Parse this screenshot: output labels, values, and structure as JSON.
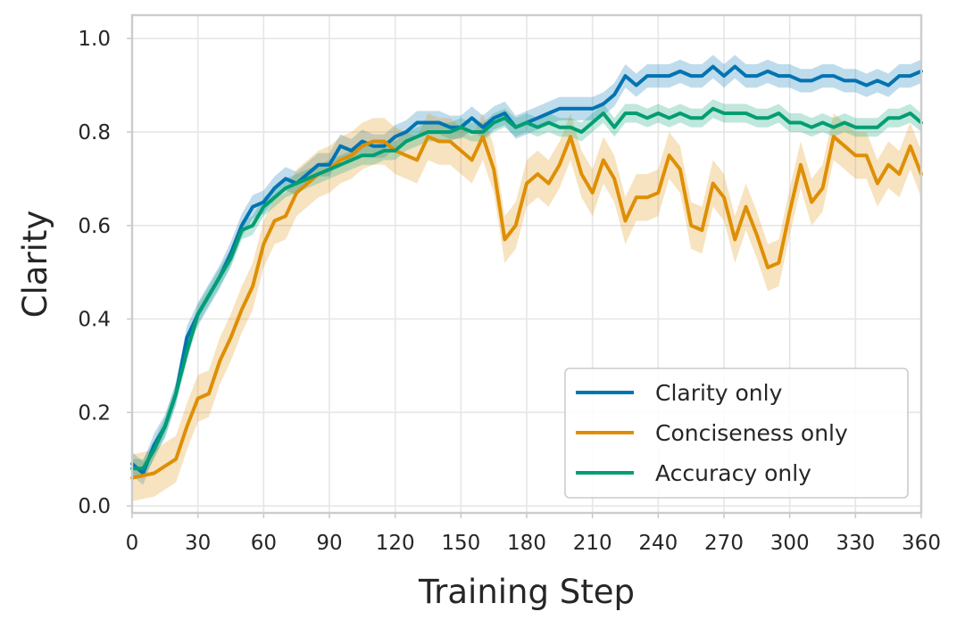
{
  "chart_data": {
    "type": "line",
    "title": "",
    "xlabel": "Training Step",
    "ylabel": "Clarity",
    "xlim": [
      0,
      360
    ],
    "ylim": [
      -0.015,
      1.05
    ],
    "xticks": [
      0,
      30,
      60,
      90,
      120,
      150,
      180,
      210,
      240,
      270,
      300,
      330,
      360
    ],
    "yticks": [
      0.0,
      0.2,
      0.4,
      0.6,
      0.8,
      1.0
    ],
    "ytick_labels": [
      "0.0",
      "0.2",
      "0.4",
      "0.6",
      "0.8",
      "1.0"
    ],
    "grid": true,
    "legend_position": "lower-right",
    "x": [
      0,
      5,
      10,
      15,
      20,
      25,
      30,
      35,
      40,
      45,
      50,
      55,
      60,
      65,
      70,
      75,
      80,
      85,
      90,
      95,
      100,
      105,
      110,
      115,
      120,
      125,
      130,
      135,
      140,
      145,
      150,
      155,
      160,
      165,
      170,
      175,
      180,
      185,
      190,
      195,
      200,
      205,
      210,
      215,
      220,
      225,
      230,
      235,
      240,
      245,
      250,
      255,
      260,
      265,
      270,
      275,
      280,
      285,
      290,
      295,
      300,
      305,
      310,
      315,
      320,
      325,
      330,
      335,
      340,
      345,
      350,
      355,
      360
    ],
    "series": [
      {
        "name": "Clarity only",
        "color": "#0173b2",
        "band": 0.025,
        "band_opacity": 0.25,
        "values": [
          0.09,
          0.07,
          0.13,
          0.17,
          0.24,
          0.36,
          0.41,
          0.45,
          0.49,
          0.54,
          0.6,
          0.64,
          0.65,
          0.68,
          0.7,
          0.69,
          0.71,
          0.73,
          0.73,
          0.77,
          0.76,
          0.78,
          0.77,
          0.77,
          0.79,
          0.8,
          0.82,
          0.82,
          0.82,
          0.81,
          0.81,
          0.83,
          0.81,
          0.83,
          0.84,
          0.81,
          0.82,
          0.83,
          0.84,
          0.85,
          0.85,
          0.85,
          0.85,
          0.86,
          0.88,
          0.92,
          0.9,
          0.92,
          0.92,
          0.92,
          0.93,
          0.92,
          0.92,
          0.94,
          0.92,
          0.94,
          0.92,
          0.92,
          0.93,
          0.92,
          0.92,
          0.91,
          0.91,
          0.92,
          0.92,
          0.91,
          0.91,
          0.9,
          0.91,
          0.9,
          0.92,
          0.92,
          0.93
        ]
      },
      {
        "name": "Conciseness only",
        "color": "#de8f05",
        "band": 0.05,
        "band_opacity": 0.25,
        "values": [
          0.06,
          0.065,
          0.07,
          0.085,
          0.1,
          0.17,
          0.23,
          0.24,
          0.31,
          0.36,
          0.42,
          0.47,
          0.56,
          0.61,
          0.62,
          0.67,
          0.69,
          0.71,
          0.72,
          0.74,
          0.75,
          0.77,
          0.78,
          0.78,
          0.76,
          0.75,
          0.74,
          0.79,
          0.78,
          0.78,
          0.76,
          0.74,
          0.79,
          0.72,
          0.57,
          0.6,
          0.69,
          0.71,
          0.69,
          0.73,
          0.79,
          0.71,
          0.67,
          0.74,
          0.7,
          0.61,
          0.66,
          0.66,
          0.67,
          0.75,
          0.72,
          0.6,
          0.59,
          0.69,
          0.66,
          0.57,
          0.64,
          0.58,
          0.51,
          0.52,
          0.63,
          0.73,
          0.65,
          0.68,
          0.79,
          0.77,
          0.75,
          0.75,
          0.69,
          0.73,
          0.71,
          0.77,
          0.71
        ]
      },
      {
        "name": "Accuracy only",
        "color": "#029e73",
        "band": 0.02,
        "band_opacity": 0.25,
        "values": [
          0.08,
          0.08,
          0.12,
          0.17,
          0.24,
          0.33,
          0.41,
          0.45,
          0.49,
          0.53,
          0.59,
          0.6,
          0.64,
          0.66,
          0.68,
          0.69,
          0.7,
          0.71,
          0.72,
          0.73,
          0.74,
          0.75,
          0.75,
          0.76,
          0.76,
          0.78,
          0.79,
          0.8,
          0.8,
          0.8,
          0.81,
          0.8,
          0.8,
          0.82,
          0.83,
          0.81,
          0.82,
          0.81,
          0.82,
          0.81,
          0.81,
          0.8,
          0.82,
          0.84,
          0.81,
          0.84,
          0.84,
          0.83,
          0.84,
          0.83,
          0.84,
          0.83,
          0.83,
          0.85,
          0.84,
          0.84,
          0.84,
          0.83,
          0.83,
          0.84,
          0.82,
          0.82,
          0.81,
          0.82,
          0.81,
          0.82,
          0.81,
          0.81,
          0.81,
          0.83,
          0.83,
          0.84,
          0.82
        ]
      }
    ]
  }
}
